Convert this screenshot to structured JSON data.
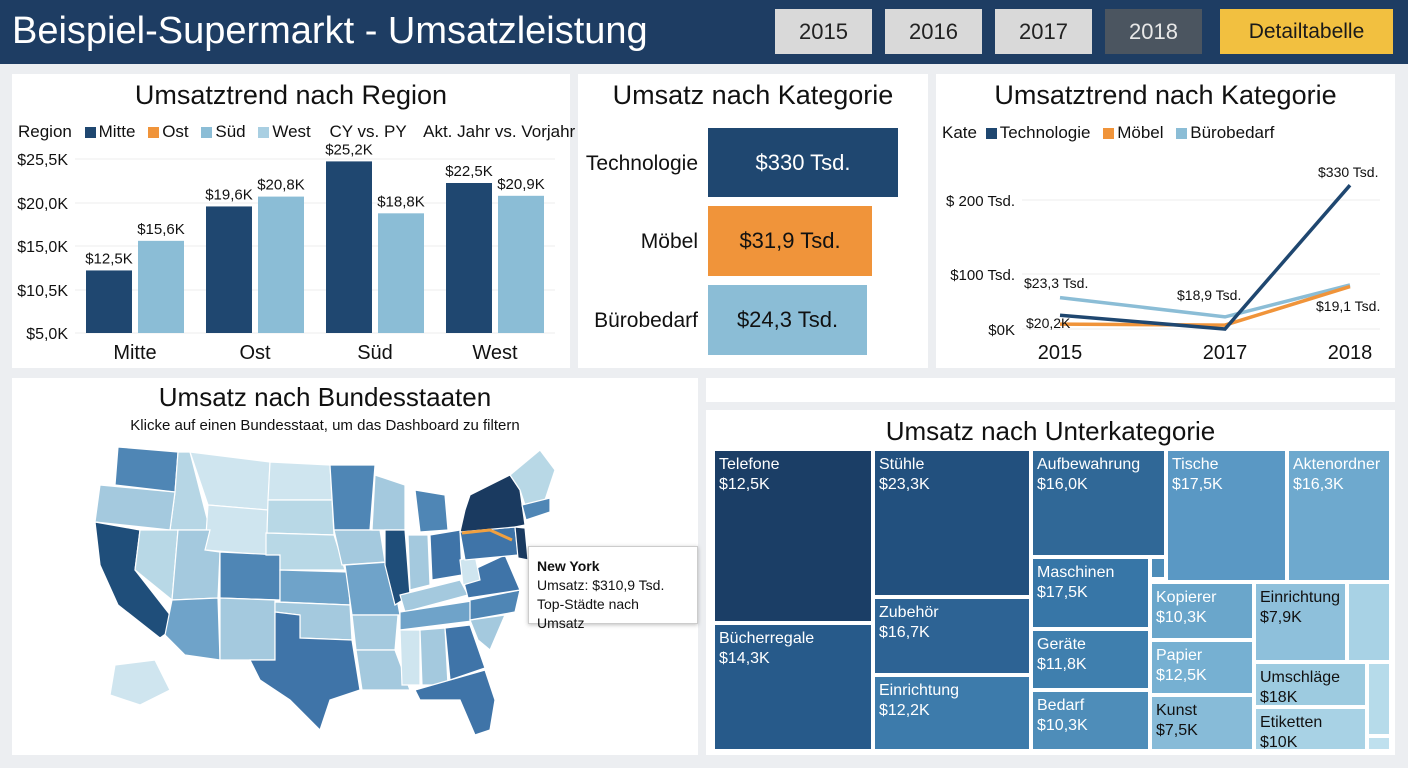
{
  "header": {
    "title": "Beispiel-Supermarkt - Umsatzleistung",
    "years": [
      "2015",
      "2016",
      "2017",
      "2018"
    ],
    "active_year": "2018",
    "detail_button": "Detailtabelle"
  },
  "colors": {
    "header": "#1e3d63",
    "dark_blue": "#1f4770",
    "orange": "#f0943a",
    "light_blue": "#8bbdd6",
    "accent": "#f2c040"
  },
  "region_chart": {
    "title": "Umsatztrend nach Region",
    "legend_title": "Region",
    "legend": [
      {
        "name": "Mitte",
        "color": "#1f4770"
      },
      {
        "name": "Ost",
        "color": "#f0943a"
      },
      {
        "name": "Süd",
        "color": "#8bbdd6"
      },
      {
        "name": "West",
        "color": "#a9cfe2"
      }
    ],
    "note1": "CY vs. PY",
    "note2": "Akt. Jahr vs. Vorjahr"
  },
  "category_chart": {
    "title": "Umsatz nach Kategorie",
    "items": [
      {
        "label": "Technologie",
        "value": "$330 Tsd.",
        "color": "#1f4770"
      },
      {
        "label": "Möbel",
        "value": "$31,9 Tsd.",
        "color": "#f0943a"
      },
      {
        "label": "Bürobedarf",
        "value": "$24,3 Tsd.",
        "color": "#8bbdd6"
      }
    ]
  },
  "trend_chart": {
    "title": "Umsatztrend nach Kategorie",
    "legend_title": "Kate",
    "labels": [
      "$23,3 Tsd.",
      "$20,2K",
      "$18,9 Tsd.",
      "$330 Tsd.",
      "$19,1 Tsd."
    ]
  },
  "map": {
    "title": "Umsatz nach Bundesstaaten",
    "subtitle": "Klicke auf einen Bundesstaat, um das Dashboard zu filtern",
    "tooltip": {
      "state": "New York",
      "sales": "Umsatz: $310,9 Tsd.",
      "link": "Top-Städte nach Umsatz"
    }
  },
  "treemap": {
    "title": "Umsatz nach Unterkategorie",
    "tiles": [
      {
        "name": "Telefone",
        "value": "$12,5K",
        "color": "#1b3e66"
      },
      {
        "name": "Bücherregale",
        "value": "$14,3K",
        "color": "#275a8a"
      },
      {
        "name": "Stühle",
        "value": "$23,3K",
        "color": "#22507e"
      },
      {
        "name": "Zubehör",
        "value": "$16,7K",
        "color": "#2d6394"
      },
      {
        "name": "Einrichtung",
        "value": "$12,2K",
        "color": "#3d7bab"
      },
      {
        "name": "Aufbewahrung",
        "value": "$16,0K",
        "color": "#306897"
      },
      {
        "name": "Maschinen",
        "value": "$17,5K",
        "color": "#3776a7"
      },
      {
        "name": "Geräte",
        "value": "$11,8K",
        "color": "#3f7fae"
      },
      {
        "name": "Bedarf",
        "value": "$10,3K",
        "color": "#4e8db9"
      },
      {
        "name": "Tische",
        "value": "$17,5K",
        "color": "#5a98c4"
      },
      {
        "name": "Aktenordner",
        "value": "$16,3K",
        "color": "#6ea9ce"
      },
      {
        "name": "Kopierer",
        "value": "$10,3K",
        "color": "#6aa6cb"
      },
      {
        "name": "Papier",
        "value": "$12,5K",
        "color": "#76b0d2"
      },
      {
        "name": "Kunst",
        "value": "$7,5K",
        "color": "#87bbd8"
      },
      {
        "name": "Einrichtung",
        "value": "$7,9K",
        "color": "#8ec0db"
      },
      {
        "name": "Umschläge",
        "value": "$18K",
        "color": "#9dcbe0"
      },
      {
        "name": "Etiketten",
        "value": "$10K",
        "color": "#a8d2e5"
      }
    ]
  },
  "chart_data": [
    {
      "type": "bar",
      "title": "Umsatztrend nach Region",
      "categories": [
        "Mitte",
        "Ost",
        "Süd",
        "West"
      ],
      "series": [
        {
          "values": [
            12.5,
            19.6,
            25.2,
            22.5
          ],
          "labels": [
            "$12,5K",
            "$19,6K",
            "$25,2K",
            "$22,5K"
          ],
          "color": "#1f4770"
        },
        {
          "values": [
            15.6,
            20.8,
            18.8,
            20.9
          ],
          "labels": [
            "$15,6K",
            "$20,8K",
            "$18,8K",
            "$20,9K"
          ],
          "color": "#8bbdd6"
        }
      ],
      "yticks": [
        "$5,0K",
        "$10,5K",
        "$15,0K",
        "$20,0K",
        "$25,5K"
      ],
      "ytick_values": [
        5,
        10.5,
        15,
        20,
        25.5
      ],
      "grid": true
    },
    {
      "type": "bar",
      "title": "Umsatz nach Kategorie",
      "categories": [
        "Technologie",
        "Möbel",
        "Bürobedarf"
      ],
      "values": [
        330,
        31.9,
        24.3
      ]
    },
    {
      "type": "line",
      "title": "Umsatztrend nach Kategorie",
      "x": [
        "2015",
        "2017",
        "2018"
      ],
      "series": [
        {
          "name": "Technologie",
          "values": [
            25,
            0,
            220
          ],
          "color": "#1f4770"
        },
        {
          "name": "Möbel",
          "values": [
            9,
            7,
            77
          ],
          "color": "#f0943a"
        },
        {
          "name": "Bürobedarf",
          "values": [
            57,
            22,
            80
          ],
          "color": "#8bbdd6"
        }
      ],
      "yticks": [
        "$0K",
        "$100 Tsd.",
        "$ 200 Tsd."
      ],
      "ytick_values": [
        0,
        100,
        200
      ],
      "grid": true
    }
  ]
}
